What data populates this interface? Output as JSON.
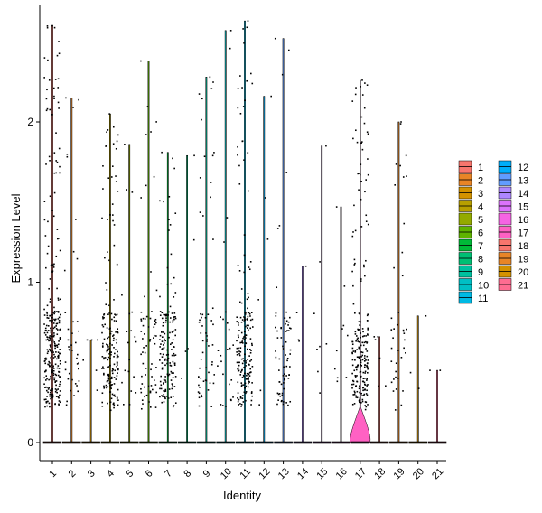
{
  "chart_data": {
    "type": "violin",
    "xlabel": "Identity",
    "ylabel": "Expression Level",
    "ylim": [
      -0.12,
      2.7
    ],
    "yticks": [
      0,
      1,
      2
    ],
    "categories": [
      "1",
      "2",
      "3",
      "4",
      "5",
      "6",
      "7",
      "8",
      "9",
      "10",
      "11",
      "12",
      "13",
      "14",
      "15",
      "16",
      "17",
      "18",
      "19",
      "20",
      "21"
    ],
    "colors": [
      "#F8766D",
      "#E88526",
      "#D39200",
      "#B79F00",
      "#93AA00",
      "#5EB300",
      "#00BA38",
      "#00BF74",
      "#00C19F",
      "#00BFC4",
      "#00B9E3",
      "#00ADFA",
      "#619CFF",
      "#AE87FF",
      "#DB72FB",
      "#F564E3",
      "#FF61C3",
      "#F8766D",
      "#E88526",
      "#D39200",
      "#FF6C91"
    ],
    "max_values": [
      2.6,
      2.15,
      0.64,
      2.05,
      1.86,
      2.38,
      1.81,
      1.79,
      2.28,
      2.57,
      2.63,
      2.16,
      2.52,
      1.1,
      1.85,
      1.47,
      2.26,
      0.66,
      2.0,
      0.79,
      0.45
    ],
    "nonzero_counts": [
      300,
      40,
      6,
      180,
      20,
      70,
      150,
      5,
      60,
      25,
      190,
      6,
      70,
      4,
      8,
      10,
      220,
      6,
      40,
      3,
      2
    ],
    "legend": {
      "position": "right",
      "entries": [
        "1",
        "2",
        "3",
        "4",
        "5",
        "6",
        "7",
        "8",
        "9",
        "10",
        "11",
        "12",
        "13",
        "14",
        "15",
        "16",
        "17",
        "18",
        "19",
        "20",
        "21"
      ]
    }
  }
}
